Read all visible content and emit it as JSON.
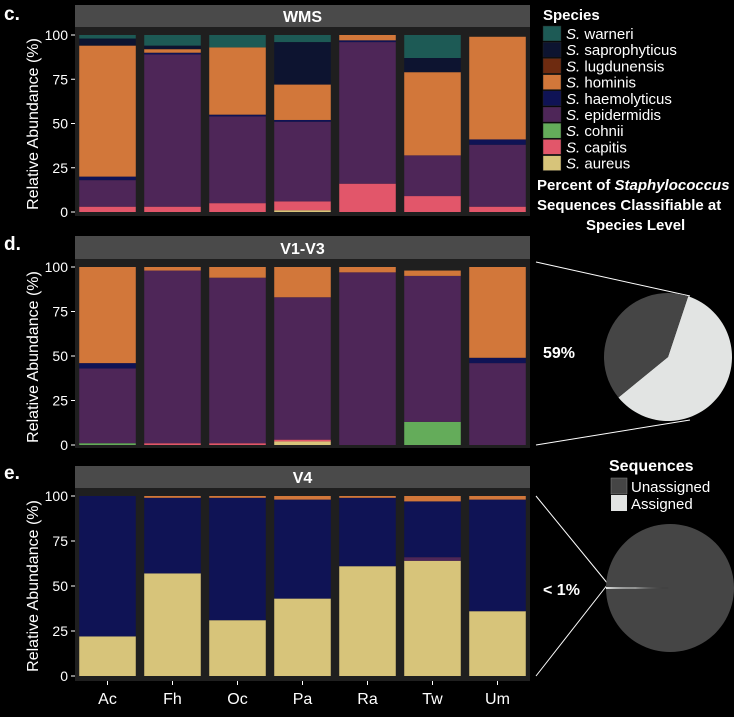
{
  "chart_data": [
    {
      "type": "bar",
      "stacked": true,
      "panel_letter": "c.",
      "title": "WMS",
      "ylabel": "Relative Abundance (%)",
      "ylim": [
        0,
        100
      ],
      "yticks": [
        0,
        25,
        50,
        75,
        100
      ],
      "categories": [
        "Ac",
        "Fh",
        "Oc",
        "Pa",
        "Ra",
        "Tw",
        "Um"
      ],
      "series": [
        {
          "name": "S. aureus",
          "values": [
            0,
            0,
            0,
            1,
            0,
            0,
            0
          ]
        },
        {
          "name": "S. capitis",
          "values": [
            3,
            3,
            5,
            5,
            16,
            9,
            3
          ]
        },
        {
          "name": "S. cohnii",
          "values": [
            0,
            0,
            0,
            0,
            0,
            0,
            0
          ]
        },
        {
          "name": "S. epidermidis",
          "values": [
            15,
            86,
            49,
            45,
            80,
            23,
            35
          ]
        },
        {
          "name": "S. haemolyticus",
          "values": [
            2,
            1,
            1,
            1,
            1,
            0,
            3
          ]
        },
        {
          "name": "S. hominis",
          "values": [
            74,
            2,
            38,
            20,
            3,
            47,
            58
          ]
        },
        {
          "name": "S. lugdunensis",
          "values": [
            0,
            0,
            0,
            0,
            0,
            0,
            0
          ]
        },
        {
          "name": "S. saprophyticus",
          "values": [
            4,
            2,
            0,
            24,
            0,
            8,
            0
          ]
        },
        {
          "name": "S. warneri",
          "values": [
            2,
            6,
            7,
            4,
            0,
            13,
            0
          ]
        }
      ]
    },
    {
      "type": "bar",
      "stacked": true,
      "panel_letter": "d.",
      "title": "V1-V3",
      "ylabel": "Relative Abundance (%)",
      "ylim": [
        0,
        100
      ],
      "yticks": [
        0,
        25,
        50,
        75,
        100
      ],
      "categories": [
        "Ac",
        "Fh",
        "Oc",
        "Pa",
        "Ra",
        "Tw",
        "Um"
      ],
      "series": [
        {
          "name": "S. aureus",
          "values": [
            0,
            0,
            0,
            2,
            0,
            0,
            0
          ]
        },
        {
          "name": "S. capitis",
          "values": [
            0,
            1,
            1,
            1,
            0,
            0,
            0
          ]
        },
        {
          "name": "S. cohnii",
          "values": [
            1,
            0,
            0,
            0,
            0,
            13,
            0
          ]
        },
        {
          "name": "S. epidermidis",
          "values": [
            42,
            97,
            93,
            80,
            97,
            82,
            46
          ]
        },
        {
          "name": "S. haemolyticus",
          "values": [
            3,
            0,
            0,
            0,
            0,
            0,
            3
          ]
        },
        {
          "name": "S. hominis",
          "values": [
            54,
            2,
            6,
            17,
            3,
            3,
            51
          ]
        },
        {
          "name": "S. lugdunensis",
          "values": [
            0,
            0,
            0,
            0,
            0,
            0,
            0
          ]
        },
        {
          "name": "S. saprophyticus",
          "values": [
            0,
            0,
            0,
            0,
            0,
            0,
            0
          ]
        },
        {
          "name": "S. warneri",
          "values": [
            0,
            0,
            0,
            0,
            0,
            0,
            0
          ]
        }
      ]
    },
    {
      "type": "bar",
      "stacked": true,
      "panel_letter": "e.",
      "title": "V4",
      "ylabel": "Relative Abundance (%)",
      "ylim": [
        0,
        100
      ],
      "yticks": [
        0,
        25,
        50,
        75,
        100
      ],
      "categories": [
        "Ac",
        "Fh",
        "Oc",
        "Pa",
        "Ra",
        "Tw",
        "Um"
      ],
      "series": [
        {
          "name": "S. aureus",
          "values": [
            22,
            57,
            31,
            43,
            61,
            64,
            36
          ]
        },
        {
          "name": "S. capitis",
          "values": [
            0,
            0,
            0,
            0,
            0,
            0,
            0
          ]
        },
        {
          "name": "S. cohnii",
          "values": [
            0,
            0,
            0,
            0,
            0,
            0,
            0
          ]
        },
        {
          "name": "S. epidermidis",
          "values": [
            0,
            0,
            0,
            0,
            0,
            2,
            0
          ]
        },
        {
          "name": "S. haemolyticus",
          "values": [
            78,
            42,
            68,
            55,
            38,
            31,
            62
          ]
        },
        {
          "name": "S. hominis",
          "values": [
            0,
            1,
            1,
            2,
            1,
            3,
            2
          ]
        },
        {
          "name": "S. lugdunensis",
          "values": [
            0,
            0,
            0,
            0,
            0,
            0,
            0
          ]
        },
        {
          "name": "S. saprophyticus",
          "values": [
            0,
            0,
            0,
            0,
            0,
            0,
            0
          ]
        },
        {
          "name": "S. warneri",
          "values": [
            0,
            0,
            0,
            0,
            0,
            0,
            0
          ]
        }
      ]
    },
    {
      "type": "pie",
      "label": "59%",
      "slices": [
        {
          "name": "Assigned",
          "value": 59
        },
        {
          "name": "Unassigned",
          "value": 41
        }
      ]
    },
    {
      "type": "pie",
      "label": "< 1%",
      "slices": [
        {
          "name": "Assigned",
          "value": 0.5
        },
        {
          "name": "Unassigned",
          "value": 99.5
        }
      ]
    }
  ],
  "colors": {
    "S. warneri": "#1d5a55",
    "S. saprophyticus": "#0d1430",
    "S. lugdunensis": "#6e2b10",
    "S. hominis": "#d2773a",
    "S. haemolyticus": "#0f1355",
    "S. epidermidis": "#4e2658",
    "S. cohnii": "#64ac5a",
    "S. capitis": "#e2566a",
    "S. aureus": "#d7c47a",
    "Assigned": "#e2e4e3",
    "Unassigned": "#454545",
    "panel_bg": "#1f1f1f",
    "strip_bg": "#4a4a4a"
  },
  "species_legend": {
    "title": "Species",
    "entries": [
      {
        "prefix": "S.",
        "name": "warneri"
      },
      {
        "prefix": "S.",
        "name": "saprophyticus"
      },
      {
        "prefix": "S.",
        "name": "lugdunensis"
      },
      {
        "prefix": "S.",
        "name": "hominis"
      },
      {
        "prefix": "S.",
        "name": "haemolyticus"
      },
      {
        "prefix": "S.",
        "name": "epidermidis"
      },
      {
        "prefix": "S.",
        "name": "cohnii"
      },
      {
        "prefix": "S.",
        "name": "capitis"
      },
      {
        "prefix": "S.",
        "name": "aureus"
      }
    ]
  },
  "pie_heading": {
    "line1_prefix": "Percent of ",
    "line1_genus": "Staphylococcus",
    "line2": "Sequences Classifiable at",
    "line3": "Species Level"
  },
  "sequences_legend": {
    "title": "Sequences",
    "entries": [
      "Unassigned",
      "Assigned"
    ]
  }
}
